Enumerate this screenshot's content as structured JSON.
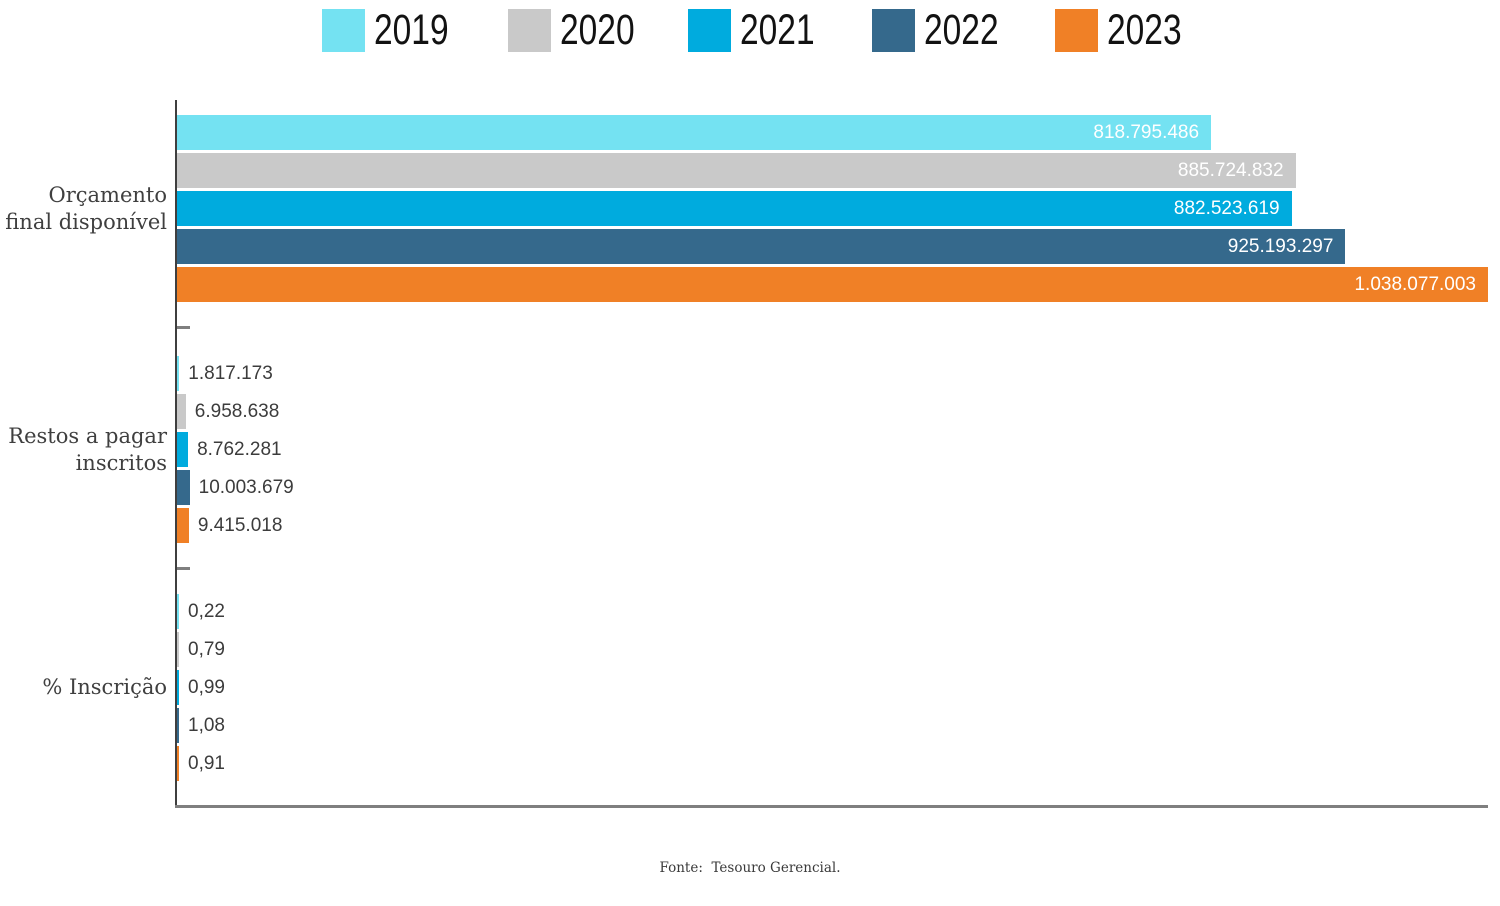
{
  "chart_data": {
    "type": "bar",
    "orientation": "horizontal",
    "title": "",
    "legend_position": "top",
    "grid": false,
    "x_axis": {
      "min": 0,
      "max": 1038077003,
      "tick_labels_visible": false
    },
    "series": [
      {
        "name": "2019",
        "color": "#74E2F2"
      },
      {
        "name": "2020",
        "color": "#C9C9C9"
      },
      {
        "name": "2021",
        "color": "#00ABDE"
      },
      {
        "name": "2022",
        "color": "#35698C"
      },
      {
        "name": "2023",
        "color": "#F08026"
      }
    ],
    "categories": [
      "Orçamento final disponível",
      "Restos a pagar inscritos",
      "% Inscrição"
    ],
    "groups": [
      {
        "category": "Orçamento final disponível",
        "category_lines": [
          "Orçamento",
          "final disponível"
        ],
        "value_label_position": "inside",
        "values": [
          818795486,
          885724832,
          882523619,
          925193297,
          1038077003
        ],
        "labels": [
          "818.795.486",
          "885.724.832",
          "882.523.619",
          "925.193.297",
          "1.038.077.003"
        ]
      },
      {
        "category": "Restos a pagar inscritos",
        "category_lines": [
          "Restos a pagar",
          "inscritos"
        ],
        "value_label_position": "outside",
        "values": [
          1817173,
          6958638,
          8762281,
          10003679,
          9415018
        ],
        "labels": [
          "1.817.173",
          "6.958.638",
          "8.762.281",
          "10.003.679",
          "9.415.018"
        ]
      },
      {
        "category": "% Inscrição",
        "category_lines": [
          "% Inscrição"
        ],
        "value_label_position": "outside",
        "values": [
          0.22,
          0.79,
          0.99,
          1.08,
          0.91
        ],
        "labels": [
          "0,22",
          "0,79",
          "0,99",
          "1,08",
          "0,91"
        ]
      }
    ]
  },
  "axis_colors": {
    "y_axis": "#3f3f3f",
    "x_axis": "#7f7f7f",
    "tick": "#7f7f7f"
  },
  "footer": {
    "source": "Fonte:  Tesouro Gerencial."
  }
}
